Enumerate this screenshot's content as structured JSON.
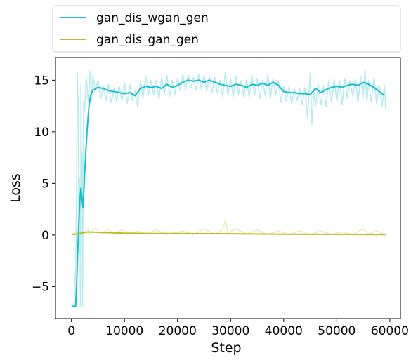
{
  "chart_data": {
    "type": "line",
    "xlabel": "Step",
    "ylabel": "Loss",
    "xlim": [
      -3000,
      62000
    ],
    "ylim": [
      -8.1,
      17.2
    ],
    "xticks": [
      0,
      10000,
      20000,
      30000,
      40000,
      50000,
      60000
    ],
    "yticks": [
      -5,
      0,
      5,
      10,
      15
    ],
    "legend_position": "top, above plot",
    "grid": false,
    "series": [
      {
        "name": "gan_dis_wgan_gen",
        "color": "#17becf",
        "raw_color": "#b8ecef",
        "smoothed": [
          [
            0,
            -6.9
          ],
          [
            600,
            -6.9
          ],
          [
            800,
            -6.9
          ],
          [
            1000,
            -4.5
          ],
          [
            1200,
            -1.5
          ],
          [
            1400,
            1.2
          ],
          [
            1600,
            3.4
          ],
          [
            1800,
            4.6
          ],
          [
            2000,
            3.5
          ],
          [
            2200,
            2.6
          ],
          [
            2400,
            5.0
          ],
          [
            2700,
            8.0
          ],
          [
            3000,
            10.5
          ],
          [
            3300,
            12.4
          ],
          [
            3600,
            13.5
          ],
          [
            4000,
            14.0
          ],
          [
            5000,
            14.3
          ],
          [
            6000,
            14.2
          ],
          [
            7000,
            14.0
          ],
          [
            8000,
            13.9
          ],
          [
            9000,
            13.8
          ],
          [
            10000,
            13.7
          ],
          [
            11000,
            13.8
          ],
          [
            12000,
            13.5
          ],
          [
            13000,
            14.2
          ],
          [
            14000,
            14.4
          ],
          [
            15000,
            14.3
          ],
          [
            16000,
            14.4
          ],
          [
            17000,
            14.2
          ],
          [
            18000,
            14.6
          ],
          [
            19000,
            14.3
          ],
          [
            20000,
            14.5
          ],
          [
            21000,
            14.8
          ],
          [
            22000,
            15.0
          ],
          [
            23000,
            14.9
          ],
          [
            24000,
            15.0
          ],
          [
            25000,
            14.8
          ],
          [
            26000,
            15.0
          ],
          [
            27000,
            14.8
          ],
          [
            28000,
            14.6
          ],
          [
            29000,
            14.5
          ],
          [
            30000,
            14.4
          ],
          [
            31000,
            14.6
          ],
          [
            32000,
            14.5
          ],
          [
            33000,
            14.3
          ],
          [
            34000,
            14.6
          ],
          [
            35000,
            14.5
          ],
          [
            36000,
            14.7
          ],
          [
            37000,
            14.5
          ],
          [
            38000,
            14.8
          ],
          [
            39000,
            14.5
          ],
          [
            40000,
            13.9
          ],
          [
            41000,
            13.8
          ],
          [
            42000,
            13.8
          ],
          [
            43000,
            13.7
          ],
          [
            44000,
            13.7
          ],
          [
            45000,
            13.6
          ],
          [
            46000,
            14.2
          ],
          [
            47000,
            13.8
          ],
          [
            48000,
            14.1
          ],
          [
            49000,
            14.3
          ],
          [
            50000,
            14.4
          ],
          [
            51000,
            14.3
          ],
          [
            52000,
            14.5
          ],
          [
            53000,
            14.6
          ],
          [
            54000,
            14.5
          ],
          [
            55000,
            14.8
          ],
          [
            56000,
            14.6
          ],
          [
            57000,
            14.3
          ],
          [
            58000,
            13.9
          ],
          [
            59000,
            13.5
          ]
        ],
        "raw": [
          [
            0,
            -6.9
          ],
          [
            500,
            -6.9
          ],
          [
            800,
            -3.0
          ],
          [
            1000,
            5.0
          ],
          [
            1100,
            15.8
          ],
          [
            1300,
            12.0
          ],
          [
            1400,
            -1.0
          ],
          [
            1500,
            5.5
          ],
          [
            1600,
            2.0
          ],
          [
            1700,
            -7.0
          ],
          [
            1800,
            14.8
          ],
          [
            1900,
            3.0
          ],
          [
            2000,
            8.0
          ],
          [
            2100,
            -7.0
          ],
          [
            2300,
            13.0
          ],
          [
            2500,
            12.0
          ],
          [
            2800,
            15.3
          ],
          [
            3200,
            12.8
          ],
          [
            3500,
            15.9
          ],
          [
            3800,
            13.0
          ],
          [
            4000,
            15.5
          ],
          [
            4500,
            14.0
          ],
          [
            5000,
            15.0
          ],
          [
            5500,
            13.2
          ],
          [
            6000,
            14.5
          ],
          [
            6500,
            13.0
          ],
          [
            7000,
            14.6
          ],
          [
            7500,
            12.8
          ],
          [
            8000,
            14.2
          ],
          [
            8500,
            12.9
          ],
          [
            9000,
            14.5
          ],
          [
            9500,
            13.0
          ],
          [
            10000,
            14.8
          ],
          [
            10500,
            12.7
          ],
          [
            11000,
            14.6
          ],
          [
            11500,
            13.0
          ],
          [
            12000,
            14.0
          ],
          [
            12500,
            12.4
          ],
          [
            13000,
            15.0
          ],
          [
            13500,
            13.3
          ],
          [
            14000,
            15.4
          ],
          [
            14500,
            13.5
          ],
          [
            15000,
            15.0
          ],
          [
            15500,
            13.6
          ],
          [
            16000,
            15.0
          ],
          [
            16500,
            13.2
          ],
          [
            17000,
            15.3
          ],
          [
            17500,
            13.6
          ],
          [
            18000,
            15.5
          ],
          [
            18500,
            13.4
          ],
          [
            19000,
            15.0
          ],
          [
            19500,
            13.6
          ],
          [
            20000,
            15.2
          ],
          [
            20500,
            14.0
          ],
          [
            21000,
            15.6
          ],
          [
            21500,
            14.0
          ],
          [
            22000,
            15.5
          ],
          [
            22500,
            14.2
          ],
          [
            23000,
            15.3
          ],
          [
            23500,
            14.0
          ],
          [
            24000,
            15.6
          ],
          [
            24500,
            14.1
          ],
          [
            25000,
            15.5
          ],
          [
            25500,
            13.9
          ],
          [
            26000,
            15.4
          ],
          [
            26500,
            13.8
          ],
          [
            27000,
            15.3
          ],
          [
            27500,
            13.7
          ],
          [
            28000,
            15.0
          ],
          [
            28500,
            13.4
          ],
          [
            29000,
            15.8
          ],
          [
            29500,
            13.5
          ],
          [
            30000,
            15.2
          ],
          [
            30500,
            13.4
          ],
          [
            31000,
            15.4
          ],
          [
            31500,
            13.6
          ],
          [
            32000,
            15.0
          ],
          [
            32500,
            13.3
          ],
          [
            33000,
            15.1
          ],
          [
            33500,
            13.4
          ],
          [
            34000,
            15.5
          ],
          [
            34500,
            13.5
          ],
          [
            35000,
            15.2
          ],
          [
            35500,
            13.2
          ],
          [
            36000,
            15.0
          ],
          [
            36500,
            13.5
          ],
          [
            37000,
            15.6
          ],
          [
            37500,
            13.2
          ],
          [
            38000,
            15.2
          ],
          [
            38500,
            13.6
          ],
          [
            39000,
            15.0
          ],
          [
            39500,
            12.8
          ],
          [
            40000,
            14.4
          ],
          [
            40500,
            12.9
          ],
          [
            41000,
            14.4
          ],
          [
            41500,
            12.7
          ],
          [
            42000,
            14.3
          ],
          [
            42500,
            13.0
          ],
          [
            43000,
            14.2
          ],
          [
            43500,
            12.6
          ],
          [
            44000,
            14.3
          ],
          [
            44500,
            11.3
          ],
          [
            45000,
            15.8
          ],
          [
            45300,
            10.7
          ],
          [
            45700,
            14.2
          ],
          [
            46000,
            12.5
          ],
          [
            46500,
            14.6
          ],
          [
            47000,
            12.6
          ],
          [
            47500,
            14.5
          ],
          [
            48000,
            12.4
          ],
          [
            48500,
            15.0
          ],
          [
            49000,
            12.8
          ],
          [
            49500,
            15.1
          ],
          [
            50000,
            13.0
          ],
          [
            50500,
            15.0
          ],
          [
            51000,
            12.6
          ],
          [
            51500,
            15.2
          ],
          [
            52000,
            13.2
          ],
          [
            52500,
            15.0
          ],
          [
            53000,
            13.4
          ],
          [
            53500,
            15.1
          ],
          [
            54000,
            12.8
          ],
          [
            54500,
            15.4
          ],
          [
            55000,
            13.3
          ],
          [
            55300,
            16.0
          ],
          [
            55700,
            13.0
          ],
          [
            56000,
            15.0
          ],
          [
            56500,
            12.8
          ],
          [
            57000,
            15.3
          ],
          [
            57500,
            12.7
          ],
          [
            58000,
            14.6
          ],
          [
            58500,
            12.4
          ],
          [
            59000,
            14.5
          ],
          [
            59200,
            12.2
          ]
        ]
      },
      {
        "name": "gan_dis_gan_gen",
        "color": "#bcbd22",
        "raw_color": "#ecedbf",
        "smoothed": [
          [
            0,
            0.05
          ],
          [
            1000,
            0.1
          ],
          [
            2000,
            0.2
          ],
          [
            3000,
            0.3
          ],
          [
            4000,
            0.28
          ],
          [
            6000,
            0.25
          ],
          [
            8000,
            0.22
          ],
          [
            10000,
            0.18
          ],
          [
            15000,
            0.15
          ],
          [
            20000,
            0.14
          ],
          [
            25000,
            0.13
          ],
          [
            30000,
            0.12
          ],
          [
            35000,
            0.1
          ],
          [
            40000,
            0.08
          ],
          [
            45000,
            0.07
          ],
          [
            50000,
            0.07
          ],
          [
            55000,
            0.06
          ],
          [
            59200,
            0.05
          ]
        ],
        "raw": [
          [
            0,
            0.05
          ],
          [
            1000,
            0.3
          ],
          [
            2000,
            0.1
          ],
          [
            3000,
            0.6
          ],
          [
            3500,
            0.1
          ],
          [
            4500,
            0.7
          ],
          [
            5500,
            0.1
          ],
          [
            7000,
            0.6
          ],
          [
            8000,
            0.05
          ],
          [
            9500,
            0.5
          ],
          [
            11000,
            0.1
          ],
          [
            12500,
            0.4
          ],
          [
            14000,
            0.05
          ],
          [
            16000,
            0.5
          ],
          [
            18000,
            0.05
          ],
          [
            21000,
            0.4
          ],
          [
            23000,
            0.05
          ],
          [
            25000,
            0.6
          ],
          [
            27000,
            0.1
          ],
          [
            28500,
            0.5
          ],
          [
            29000,
            1.4
          ],
          [
            29500,
            0.2
          ],
          [
            31000,
            0.6
          ],
          [
            33000,
            0.1
          ],
          [
            35000,
            0.5
          ],
          [
            37000,
            0.05
          ],
          [
            39000,
            0.4
          ],
          [
            41000,
            0.05
          ],
          [
            43000,
            0.4
          ],
          [
            45000,
            0.05
          ],
          [
            47000,
            0.4
          ],
          [
            49000,
            0.05
          ],
          [
            51000,
            0.3
          ],
          [
            53000,
            0.05
          ],
          [
            55000,
            0.6
          ],
          [
            56000,
            0.1
          ],
          [
            57500,
            0.4
          ],
          [
            59200,
            0.05
          ]
        ]
      }
    ]
  }
}
